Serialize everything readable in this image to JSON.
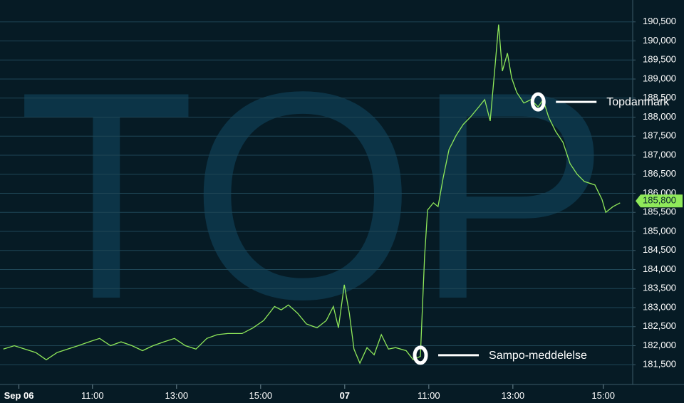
{
  "chart_data": {
    "type": "line",
    "watermark": "TOP",
    "color": "#8fe85a",
    "grid": true,
    "xlim": [
      8.8,
      23.85
    ],
    "ylim": [
      181000,
      191000
    ],
    "xticks": [
      {
        "value": 9.25,
        "label": "Sep 06"
      },
      {
        "value": 11,
        "label": "11:00"
      },
      {
        "value": 13,
        "label": "13:00"
      },
      {
        "value": 15,
        "label": "15:00"
      },
      {
        "value": 17,
        "label": "07"
      },
      {
        "value": 19,
        "label": "11:00"
      },
      {
        "value": 21,
        "label": "13:00"
      },
      {
        "value": 23.15,
        "label": "15:00"
      }
    ],
    "yticks": [
      {
        "value": 181500,
        "label": "181,500"
      },
      {
        "value": 182000,
        "label": "182,000"
      },
      {
        "value": 182500,
        "label": "182,500"
      },
      {
        "value": 183000,
        "label": "183,000"
      },
      {
        "value": 183500,
        "label": "183,500"
      },
      {
        "value": 184000,
        "label": "184,000"
      },
      {
        "value": 184500,
        "label": "184,500"
      },
      {
        "value": 185000,
        "label": "185,000"
      },
      {
        "value": 185500,
        "label": "185,500"
      },
      {
        "value": 186000,
        "label": "186,000"
      },
      {
        "value": 186500,
        "label": "186,500"
      },
      {
        "value": 187000,
        "label": "187,000"
      },
      {
        "value": 187500,
        "label": "187,500"
      },
      {
        "value": 188000,
        "label": "188,000"
      },
      {
        "value": 188500,
        "label": "188,500"
      },
      {
        "value": 189000,
        "label": "189,000"
      },
      {
        "value": 189500,
        "label": "189,500"
      },
      {
        "value": 190000,
        "label": "190,000"
      },
      {
        "value": 190500,
        "label": "190,500"
      }
    ],
    "x": [
      8.88,
      9.14,
      9.39,
      9.65,
      9.9,
      10.16,
      10.41,
      10.66,
      10.92,
      11.17,
      11.43,
      11.68,
      11.94,
      12.19,
      12.44,
      12.7,
      12.95,
      13.21,
      13.46,
      13.72,
      13.97,
      14.22,
      14.56,
      14.82,
      15.07,
      15.33,
      15.49,
      15.66,
      15.88,
      16.09,
      16.34,
      16.56,
      16.73,
      16.85,
      16.99,
      17.11,
      17.22,
      17.36,
      17.53,
      17.7,
      17.87,
      18.04,
      18.21,
      18.46,
      18.63,
      18.8,
      18.9,
      18.97,
      19.11,
      19.22,
      19.34,
      19.48,
      19.65,
      19.82,
      19.99,
      20.19,
      20.33,
      20.46,
      20.58,
      20.66,
      20.75,
      20.87,
      20.97,
      21.09,
      21.26,
      21.43,
      21.6,
      21.72,
      21.85,
      22.02,
      22.19,
      22.36,
      22.53,
      22.7,
      22.95,
      23.12,
      23.21,
      23.38,
      23.55
    ],
    "values": [
      181910,
      182000,
      181910,
      181820,
      181630,
      181820,
      181910,
      182000,
      182100,
      182190,
      182000,
      182100,
      182000,
      181870,
      182000,
      182100,
      182190,
      182000,
      181910,
      182190,
      182290,
      182320,
      182320,
      182470,
      182660,
      183030,
      182940,
      183070,
      182850,
      182570,
      182470,
      182660,
      183030,
      182470,
      183600,
      182850,
      181910,
      181540,
      181950,
      181760,
      182290,
      181910,
      181950,
      181870,
      181630,
      181720,
      184340,
      185560,
      185750,
      185650,
      186400,
      187150,
      187520,
      187810,
      188000,
      188270,
      188460,
      187900,
      189400,
      190430,
      189210,
      189680,
      189030,
      188650,
      188370,
      188460,
      188270,
      188460,
      188000,
      187620,
      187340,
      186780,
      186500,
      186310,
      186220,
      185840,
      185500,
      185650,
      185750
    ],
    "last_price": {
      "value": 185800,
      "label": "185,800"
    },
    "annotations": [
      {
        "text": "Topdanmark",
        "x": 21.6,
        "y": 188400
      },
      {
        "text": "Sampo-meddelelse",
        "x": 18.8,
        "y": 181750
      }
    ]
  }
}
